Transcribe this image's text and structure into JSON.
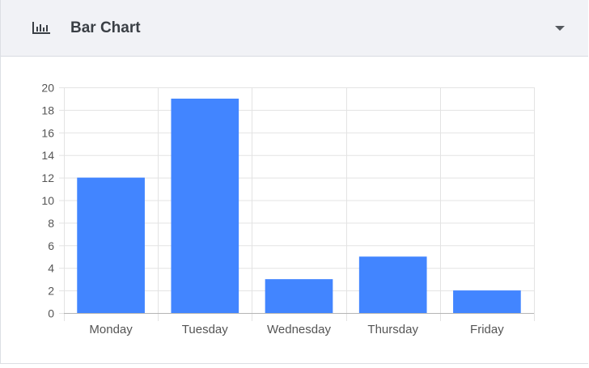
{
  "header": {
    "title": "Bar Chart",
    "icon": "bar-chart-icon",
    "menu_icon": "caret-down-icon"
  },
  "colors": {
    "bar": "#4285ff",
    "grid": "#e3e3e3",
    "axis": "#b5b5b5",
    "tick_text": "#555555"
  },
  "chart_data": {
    "type": "bar",
    "title": "",
    "xlabel": "",
    "ylabel": "",
    "categories": [
      "Monday",
      "Tuesday",
      "Wednesday",
      "Thursday",
      "Friday"
    ],
    "values": [
      12,
      19,
      3,
      5,
      2
    ],
    "ylim": [
      0,
      20
    ],
    "yticks": [
      0,
      2,
      4,
      6,
      8,
      10,
      12,
      14,
      16,
      18,
      20
    ],
    "grid": true,
    "legend": "none"
  }
}
